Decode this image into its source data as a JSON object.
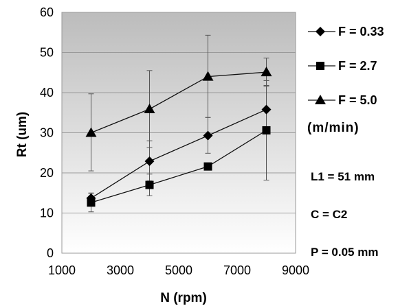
{
  "chart_data": {
    "type": "line",
    "xlabel": "N (rpm)",
    "ylabel": "Rt (um)",
    "xlim": [
      1000,
      9000
    ],
    "ylim": [
      0,
      60
    ],
    "x_ticks": [
      "1000",
      "3000",
      "5000",
      "7000",
      "9000"
    ],
    "y_ticks": [
      "0",
      "10",
      "20",
      "30",
      "40",
      "50",
      "60"
    ],
    "grid": "horizontal",
    "background": "vertical gradient, dark grey top to white bottom",
    "legend_position": "right",
    "series": [
      {
        "name": "F = 0.33",
        "marker": "diamond",
        "x": [
          2000,
          4000,
          6000,
          8000
        ],
        "y": [
          13.7,
          22.9,
          29.3,
          35.8
        ],
        "err_low": [
          12.4,
          18.0,
          24.9,
          31.0
        ],
        "err_high": [
          15.0,
          28.0,
          33.8,
          41.8
        ]
      },
      {
        "name": "F = 2.7",
        "marker": "square",
        "x": [
          2000,
          4000,
          6000,
          8000
        ],
        "y": [
          12.6,
          17.0,
          21.6,
          30.6
        ],
        "err_low": [
          10.3,
          14.3,
          21.6,
          18.2
        ],
        "err_high": [
          14.9,
          19.7,
          21.6,
          43.0
        ]
      },
      {
        "name": "F = 5.0",
        "marker": "triangle",
        "x": [
          2000,
          4000,
          6000,
          8000
        ],
        "y": [
          30.0,
          35.9,
          44.0,
          45.1
        ],
        "err_low": [
          20.5,
          26.3,
          33.8,
          41.6
        ],
        "err_high": [
          39.7,
          45.5,
          54.3,
          48.6
        ]
      }
    ],
    "units_note": "(m/min)",
    "notes": [
      "L1 = 51 mm",
      "C = C2",
      "P = 0.05 mm"
    ]
  },
  "colors": {
    "gradient_top": "#bcbcbc",
    "gradient_bottom": "#ffffff",
    "series_line": "#111111",
    "marker": "#000000",
    "error_bar": "#555555",
    "gridline": "#9a9a9a",
    "plot_border": "#999999"
  }
}
